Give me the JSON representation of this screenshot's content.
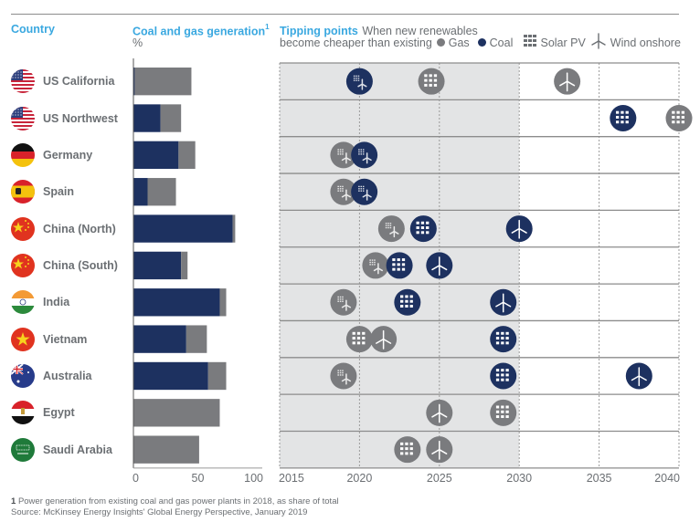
{
  "headers": {
    "country": "Country",
    "generation_title": "Coal and gas generation",
    "generation_footnote_mark": "1",
    "generation_unit": "%",
    "tipping_title": "Tipping points",
    "tipping_desc_line1": "When new renewables",
    "tipping_desc_line2": "become cheaper than existing"
  },
  "legend": {
    "gas": "Gas",
    "coal": "Coal",
    "solar": "Solar PV",
    "wind": "Wind onshore"
  },
  "colors": {
    "coal": "#1d3160",
    "gas": "#7a7b7e",
    "accent": "#3aa8e0",
    "shade": "#e3e4e5"
  },
  "footnote": {
    "number": "1",
    "text": "Power generation from existing coal and gas power plants in 2018, as share of total",
    "source": "Source: McKinsey Energy Insights' Global Energy Perspective, January 2019"
  },
  "chart_data": [
    {
      "type": "bar",
      "title": "Coal and gas generation",
      "xlabel": "%",
      "stacked": true,
      "orientation": "horizontal",
      "xlim": [
        0,
        100
      ],
      "xticks": [
        "0",
        "50",
        "100"
      ],
      "categories": [
        "US California",
        "US Northwest",
        "Germany",
        "Spain",
        "China (North)",
        "China (South)",
        "India",
        "Vietnam",
        "Australia",
        "Egypt",
        "Saudi Arabia"
      ],
      "flags": [
        "us",
        "us",
        "de",
        "es",
        "cn",
        "cn",
        "in",
        "vn",
        "au",
        "eg",
        "sa"
      ],
      "series": [
        {
          "name": "Coal",
          "values": [
            1,
            21,
            35,
            11,
            77,
            37,
            67,
            41,
            58,
            0,
            0
          ]
        },
        {
          "name": "Gas",
          "values": [
            44,
            16,
            13,
            22,
            2,
            5,
            5,
            16,
            14,
            67,
            51
          ]
        }
      ]
    },
    {
      "type": "scatter",
      "title": "Tipping points",
      "subtitle": "When new renewables become cheaper than existing",
      "xlim": [
        2015,
        2040
      ],
      "xticks": [
        "2015",
        "2020",
        "2025",
        "2030",
        "2035",
        "2040"
      ],
      "shaded_range": [
        2015,
        2030
      ],
      "grid": true,
      "rows": [
        {
          "country": "US California",
          "points": [
            {
              "fuel": "Coal",
              "tech": "Solar PV + Wind onshore",
              "year": 2020
            },
            {
              "fuel": "Gas",
              "tech": "Solar PV",
              "year": 2024.5
            },
            {
              "fuel": "Gas",
              "tech": "Wind onshore",
              "year": 2033
            }
          ]
        },
        {
          "country": "US Northwest",
          "points": [
            {
              "fuel": "Coal",
              "tech": "Solar PV",
              "year": 2036.5
            },
            {
              "fuel": "Gas",
              "tech": "Solar PV",
              "year": 2040
            }
          ]
        },
        {
          "country": "Germany",
          "points": [
            {
              "fuel": "Gas",
              "tech": "Solar PV + Wind onshore",
              "year": 2019
            },
            {
              "fuel": "Coal",
              "tech": "Solar PV + Wind onshore",
              "year": 2020.3
            }
          ]
        },
        {
          "country": "Spain",
          "points": [
            {
              "fuel": "Gas",
              "tech": "Solar PV + Wind onshore",
              "year": 2019
            },
            {
              "fuel": "Coal",
              "tech": "Solar PV + Wind onshore",
              "year": 2020.3
            }
          ]
        },
        {
          "country": "China (North)",
          "points": [
            {
              "fuel": "Gas",
              "tech": "Solar PV + Wind onshore",
              "year": 2022
            },
            {
              "fuel": "Coal",
              "tech": "Solar PV",
              "year": 2024
            },
            {
              "fuel": "Coal",
              "tech": "Wind onshore",
              "year": 2030
            }
          ]
        },
        {
          "country": "China (South)",
          "points": [
            {
              "fuel": "Gas",
              "tech": "Solar PV + Wind onshore",
              "year": 2021
            },
            {
              "fuel": "Coal",
              "tech": "Solar PV",
              "year": 2022.5
            },
            {
              "fuel": "Coal",
              "tech": "Wind onshore",
              "year": 2025
            }
          ]
        },
        {
          "country": "India",
          "points": [
            {
              "fuel": "Gas",
              "tech": "Solar PV + Wind onshore",
              "year": 2019
            },
            {
              "fuel": "Coal",
              "tech": "Solar PV",
              "year": 2023
            },
            {
              "fuel": "Coal",
              "tech": "Wind onshore",
              "year": 2029
            }
          ]
        },
        {
          "country": "Vietnam",
          "points": [
            {
              "fuel": "Gas",
              "tech": "Solar PV",
              "year": 2020
            },
            {
              "fuel": "Gas",
              "tech": "Wind onshore",
              "year": 2021.5
            },
            {
              "fuel": "Coal",
              "tech": "Solar PV",
              "year": 2029
            }
          ]
        },
        {
          "country": "Australia",
          "points": [
            {
              "fuel": "Gas",
              "tech": "Solar PV + Wind onshore",
              "year": 2019
            },
            {
              "fuel": "Coal",
              "tech": "Solar PV",
              "year": 2029
            },
            {
              "fuel": "Coal",
              "tech": "Wind onshore",
              "year": 2037.5
            }
          ]
        },
        {
          "country": "Egypt",
          "points": [
            {
              "fuel": "Gas",
              "tech": "Wind onshore",
              "year": 2025
            },
            {
              "fuel": "Gas",
              "tech": "Solar PV",
              "year": 2029
            }
          ]
        },
        {
          "country": "Saudi Arabia",
          "points": [
            {
              "fuel": "Gas",
              "tech": "Solar PV",
              "year": 2023
            },
            {
              "fuel": "Gas",
              "tech": "Wind onshore",
              "year": 2025
            }
          ]
        }
      ]
    }
  ]
}
